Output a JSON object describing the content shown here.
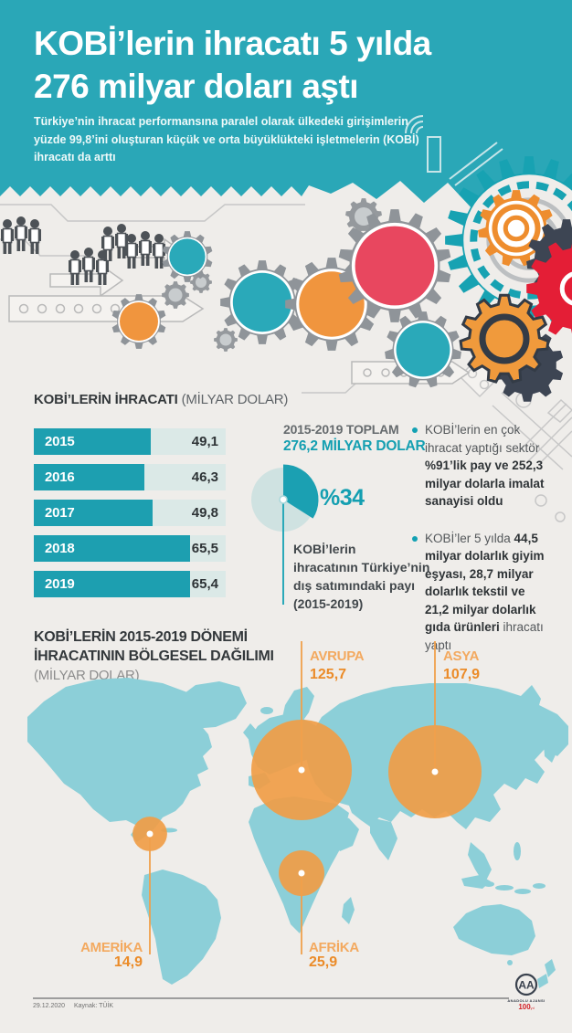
{
  "header": {
    "title_line1": "KOBİ’lerin ihracatı 5 yılda",
    "title_line2": "276 milyar doları aştı",
    "subtitle_lines": [
      "Türkiye’nin ihracat performansına paralel olarak ülkedeki girişimlerin",
      "yüzde 99,8’ini oluşturan küçük ve orta büyüklükteki işletmelerin (KOBİ)",
      "ihracatı da arttı"
    ],
    "bg_color": "#2aa7b7"
  },
  "bar_section": {
    "title": "KOBİ’LERİN İHRACATI ",
    "title_unit": "(MİLYAR DOLAR)"
  },
  "pie_section": {
    "period_label": "2015-2019 TOPLAM",
    "total_label": "276,2 MİLYAR DOLAR",
    "percent_label": "%34",
    "caption_lines": [
      "KOBİ’lerin",
      "ihracatının Türkiye’nin",
      "dış satımındaki payı",
      "(2015-2019)"
    ]
  },
  "bullets": [
    {
      "pre": "KOBİ’lerin en çok ihracat yaptığı sektör ",
      "bold": "%91’lik pay ve 252,3 milyar dolarla imalat sanayisi oldu",
      "post": ""
    },
    {
      "pre": "KOBİ’ler 5 yılda ",
      "bold": "44,5 milyar dolarlık giyim eşyası, 28,7 milyar dolarlık tekstil ve 21,2 milyar dolarlık gıda ürünleri",
      "post": " ihracatı yaptı"
    }
  ],
  "map_section": {
    "title_line1": "KOBİ’LERİN 2015-2019 DÖNEMİ",
    "title_line2": "İHRACATININ BÖLGESEL DAĞILIMI",
    "title_line3": "(MİLYAR DOLAR)"
  },
  "footer": {
    "date": "29.12.2020",
    "source": "Kaynak: TÜİK",
    "agency_abbr": "AA",
    "agency_name": "ANADOLU AJANSI",
    "centennial": "100",
    "centennial_sub": "yıl"
  },
  "colors": {
    "teal": "#2aa7b7",
    "teal_dark": "#1d9fb0",
    "teal_light": "#cfe2e1",
    "bar_track": "#dbe9e7",
    "orange": "#f09c44",
    "orange_dark": "#eb8b28",
    "red": "#e8475f",
    "map_land": "#8ccfd8",
    "text_dark": "#3a3f42",
    "text_gray": "#8d8d8d"
  },
  "chart_data": [
    {
      "type": "bar",
      "title": "KOBİ’LERİN İHRACATI (MİLYAR DOLAR)",
      "orientation": "horizontal",
      "categories": [
        "2015",
        "2016",
        "2017",
        "2018",
        "2019"
      ],
      "values": [
        49.1,
        46.3,
        49.8,
        65.5,
        65.4
      ],
      "value_labels": [
        "49,1",
        "46,3",
        "49,8",
        "65,5",
        "65,4"
      ],
      "xlim": [
        0,
        80
      ],
      "bar_color": "#1d9fb0",
      "track_color": "#dbe9e7"
    },
    {
      "type": "pie",
      "title": "2015-2019 TOPLAM 276,2 MİLYAR DOLAR",
      "slices": [
        {
          "label": "KOBİ’lerin ihracatının Türkiye’nin dış satımındaki payı (2015-2019)",
          "percent": 34,
          "color": "#1ba0b2"
        },
        {
          "label": "Diğer",
          "percent": 66,
          "color": "#cfe2e1"
        }
      ]
    },
    {
      "type": "bubble-map",
      "title": "KOBİ’LERİN 2015-2019 DÖNEMİ İHRACATININ BÖLGESEL DAĞILIMI (MİLYAR DOLAR)",
      "regions": [
        {
          "name": "AVRUPA",
          "value": 125.7,
          "value_label": "125,7"
        },
        {
          "name": "ASYA",
          "value": 107.9,
          "value_label": "107,9"
        },
        {
          "name": "AMERİKA",
          "value": 14.9,
          "value_label": "14,9"
        },
        {
          "name": "AFRİKA",
          "value": 25.9,
          "value_label": "25,9"
        }
      ]
    }
  ]
}
